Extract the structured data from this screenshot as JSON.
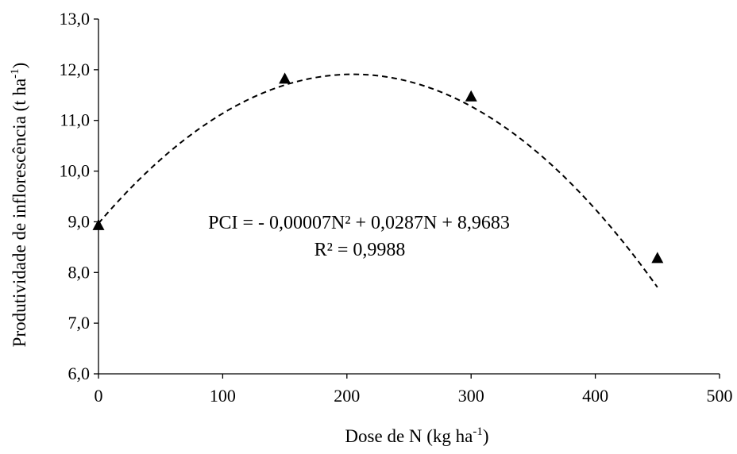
{
  "chart_data": {
    "type": "scatter",
    "title": "",
    "xlabel": "Dose de N (kg ha",
    "xlabel_sup": "-1",
    "xlabel_suffix": ")",
    "ylabel": "Produtividade de inflorescência (t ha",
    "ylabel_sup": "-1",
    "ylabel_suffix": ")",
    "xlim": [
      0,
      500
    ],
    "ylim": [
      6.0,
      13.0
    ],
    "x_ticks": [
      0,
      100,
      200,
      300,
      400,
      500
    ],
    "x_tick_labels": [
      "0",
      "100",
      "200",
      "300",
      "400",
      "500"
    ],
    "y_ticks": [
      6.0,
      7.0,
      8.0,
      9.0,
      10.0,
      11.0,
      12.0,
      13.0
    ],
    "y_tick_labels": [
      "6,0",
      "7,0",
      "8,0",
      "9,0",
      "10,0",
      "11,0",
      "12,0",
      "13,0"
    ],
    "grid": false,
    "marker": "triangle",
    "series": [
      {
        "x": [
          0,
          150,
          300,
          450
        ],
        "y": [
          8.93,
          11.82,
          11.47,
          8.28
        ]
      }
    ],
    "trendline": {
      "type": "polynomial",
      "style": "dashed",
      "coefficients": {
        "a": -7e-05,
        "b": 0.0287,
        "c": 8.9683
      },
      "x_range": [
        0,
        450
      ]
    },
    "annotations": {
      "equation": "PCI = - 0,00007N² + 0,0287N + 8,9683",
      "r_squared": "R² = 0,9988"
    },
    "colors": {
      "axis": "#000000",
      "marker": "#000000",
      "trendline": "#000000"
    }
  }
}
